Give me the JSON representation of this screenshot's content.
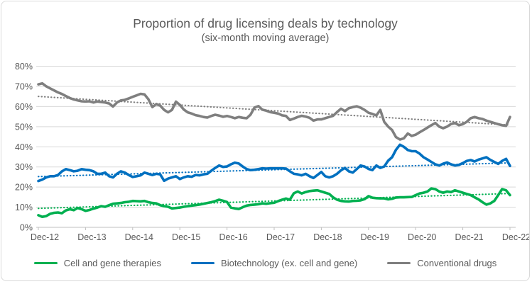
{
  "header": {
    "title": "Proportion of drug licensing deals by technology",
    "subtitle": "(six-month moving average)"
  },
  "chart_data": {
    "type": "line",
    "title": "Proportion of drug licensing deals by technology",
    "subtitle": "(six-month moving average)",
    "xlabel": "",
    "ylabel": "",
    "unit": "%",
    "ylim": [
      0,
      80
    ],
    "y_ticks": [
      0,
      10,
      20,
      30,
      40,
      50,
      60,
      70,
      80
    ],
    "y_tick_suffix": "%",
    "grid": "horizontal",
    "legend_position": "bottom",
    "x_tick_labels": [
      "Dec-12",
      "Dec-13",
      "Dec-14",
      "Dec-15",
      "Dec-16",
      "Dec-17",
      "Dec-18",
      "Dec-19",
      "Dec-20",
      "Dec-21",
      "Dec-22"
    ],
    "x_frequency": "monthly",
    "points_per_series": 121,
    "series": [
      {
        "name": "Cell and gene therapies",
        "color": "#00B050",
        "values": [
          6.0,
          5.2,
          5.6,
          6.7,
          7.2,
          7.4,
          7.0,
          8.4,
          9.0,
          8.5,
          9.6,
          9.0,
          8.2,
          8.6,
          9.3,
          9.8,
          10.5,
          10.2,
          11.0,
          11.7,
          11.9,
          12.1,
          12.5,
          12.7,
          13.1,
          13.0,
          12.9,
          13.1,
          12.5,
          12.1,
          11.9,
          11.0,
          10.5,
          10.2,
          9.4,
          9.6,
          9.8,
          10.2,
          10.5,
          10.8,
          11.0,
          11.3,
          11.7,
          12.1,
          12.5,
          13.0,
          13.7,
          13.2,
          12.6,
          9.8,
          9.4,
          9.1,
          10.0,
          10.8,
          11.1,
          11.3,
          11.5,
          11.9,
          11.7,
          12.0,
          12.2,
          13.0,
          13.7,
          14.3,
          13.7,
          16.9,
          17.8,
          16.8,
          17.5,
          18.0,
          18.2,
          18.4,
          17.8,
          17.2,
          16.6,
          14.9,
          13.7,
          13.1,
          12.9,
          12.8,
          13.1,
          13.2,
          13.4,
          14.0,
          15.5,
          14.7,
          14.5,
          14.4,
          14.4,
          13.9,
          14.2,
          14.8,
          14.9,
          14.9,
          15.0,
          15.1,
          16.0,
          16.8,
          17.2,
          17.8,
          19.3,
          19.0,
          17.8,
          17.2,
          17.8,
          17.5,
          18.4,
          17.8,
          17.2,
          16.6,
          16.0,
          14.9,
          13.9,
          12.5,
          11.3,
          11.9,
          13.1,
          16.0,
          19.0,
          18.4,
          16.0
        ]
      },
      {
        "name": "Biotechnology (ex. cell and gene)",
        "color": "#0070C0",
        "values": [
          23.0,
          23.7,
          24.8,
          25.4,
          25.4,
          26.0,
          27.8,
          28.9,
          28.4,
          27.8,
          28.1,
          28.9,
          28.6,
          28.4,
          27.8,
          26.6,
          26.6,
          27.2,
          25.4,
          24.8,
          26.6,
          27.8,
          27.2,
          26.0,
          25.0,
          25.4,
          25.8,
          27.2,
          26.6,
          26.0,
          26.6,
          26.3,
          23.1,
          24.2,
          24.8,
          25.4,
          24.0,
          24.8,
          25.4,
          25.1,
          26.0,
          25.8,
          26.3,
          26.6,
          28.1,
          29.5,
          30.7,
          30.0,
          30.2,
          31.3,
          32.1,
          31.7,
          30.2,
          28.9,
          28.4,
          28.6,
          28.9,
          29.3,
          29.2,
          29.3,
          29.3,
          29.3,
          29.3,
          29.2,
          27.8,
          26.6,
          26.3,
          25.8,
          26.6,
          25.4,
          24.5,
          26.0,
          27.5,
          25.4,
          24.8,
          25.4,
          26.6,
          28.3,
          29.5,
          27.8,
          27.2,
          28.9,
          30.7,
          30.2,
          29.0,
          28.4,
          30.7,
          29.5,
          30.2,
          33.1,
          34.8,
          38.5,
          41.0,
          40.0,
          38.4,
          37.8,
          37.8,
          36.6,
          34.8,
          33.7,
          32.5,
          31.3,
          30.7,
          31.6,
          32.2,
          31.3,
          30.7,
          31.0,
          31.9,
          33.0,
          33.4,
          32.7,
          33.6,
          34.2,
          34.8,
          33.5,
          32.5,
          31.5,
          33.0,
          34.0,
          30.5
        ]
      },
      {
        "name": "Conventional drugs",
        "color": "#7F7F7F",
        "values": [
          71.0,
          71.5,
          70.0,
          69.0,
          68.0,
          67.0,
          66.2,
          65.2,
          64.2,
          63.5,
          63.0,
          62.6,
          62.5,
          62.6,
          62.0,
          62.5,
          62.2,
          62.0,
          61.5,
          60.0,
          62.0,
          63.0,
          63.3,
          64.0,
          64.8,
          65.5,
          66.3,
          66.0,
          63.6,
          59.7,
          61.2,
          60.5,
          58.3,
          57.1,
          58.3,
          62.4,
          60.8,
          58.5,
          57.1,
          56.5,
          55.7,
          55.3,
          54.8,
          54.5,
          55.3,
          55.9,
          55.5,
          54.9,
          55.3,
          54.8,
          54.2,
          54.8,
          54.4,
          54.2,
          56.0,
          59.5,
          60.2,
          58.4,
          57.9,
          57.2,
          56.9,
          56.5,
          55.6,
          55.3,
          53.3,
          54.0,
          54.8,
          55.4,
          55.0,
          54.4,
          53.0,
          53.6,
          53.6,
          54.2,
          54.8,
          55.4,
          57.2,
          58.9,
          57.7,
          59.2,
          59.7,
          60.1,
          59.4,
          58.3,
          56.9,
          56.3,
          55.6,
          58.3,
          52.4,
          50.0,
          48.3,
          44.8,
          43.6,
          44.2,
          46.6,
          45.4,
          46.0,
          47.2,
          48.3,
          49.5,
          50.7,
          51.8,
          50.0,
          49.2,
          50.0,
          51.3,
          51.8,
          50.7,
          51.2,
          52.4,
          54.2,
          54.8,
          54.2,
          53.8,
          53.0,
          52.4,
          51.8,
          51.2,
          50.7,
          50.4,
          54.8
        ]
      }
    ],
    "trendlines": [
      {
        "series": "Cell and gene therapies",
        "color": "#00B050",
        "style": "dotted",
        "start": 9.4,
        "end": 16.8
      },
      {
        "series": "Biotechnology (ex. cell and gene)",
        "color": "#0070C0",
        "style": "dotted",
        "start": 25.2,
        "end": 32.0
      },
      {
        "series": "Conventional drugs",
        "color": "#7F7F7F",
        "style": "dotted",
        "start": 65.0,
        "end": 50.8
      }
    ]
  },
  "legend": {
    "items": [
      {
        "label": "Cell and gene therapies",
        "color": "#00B050"
      },
      {
        "label": "Biotechnology (ex. cell and gene)",
        "color": "#0070C0"
      },
      {
        "label": "Conventional drugs",
        "color": "#7F7F7F"
      }
    ]
  },
  "colors": {
    "text": "#595959",
    "gridline": "#D9D9D9",
    "axis_line": "#BFBFBF",
    "frame_border": "#D9D9D9",
    "background": "#FFFFFF"
  }
}
